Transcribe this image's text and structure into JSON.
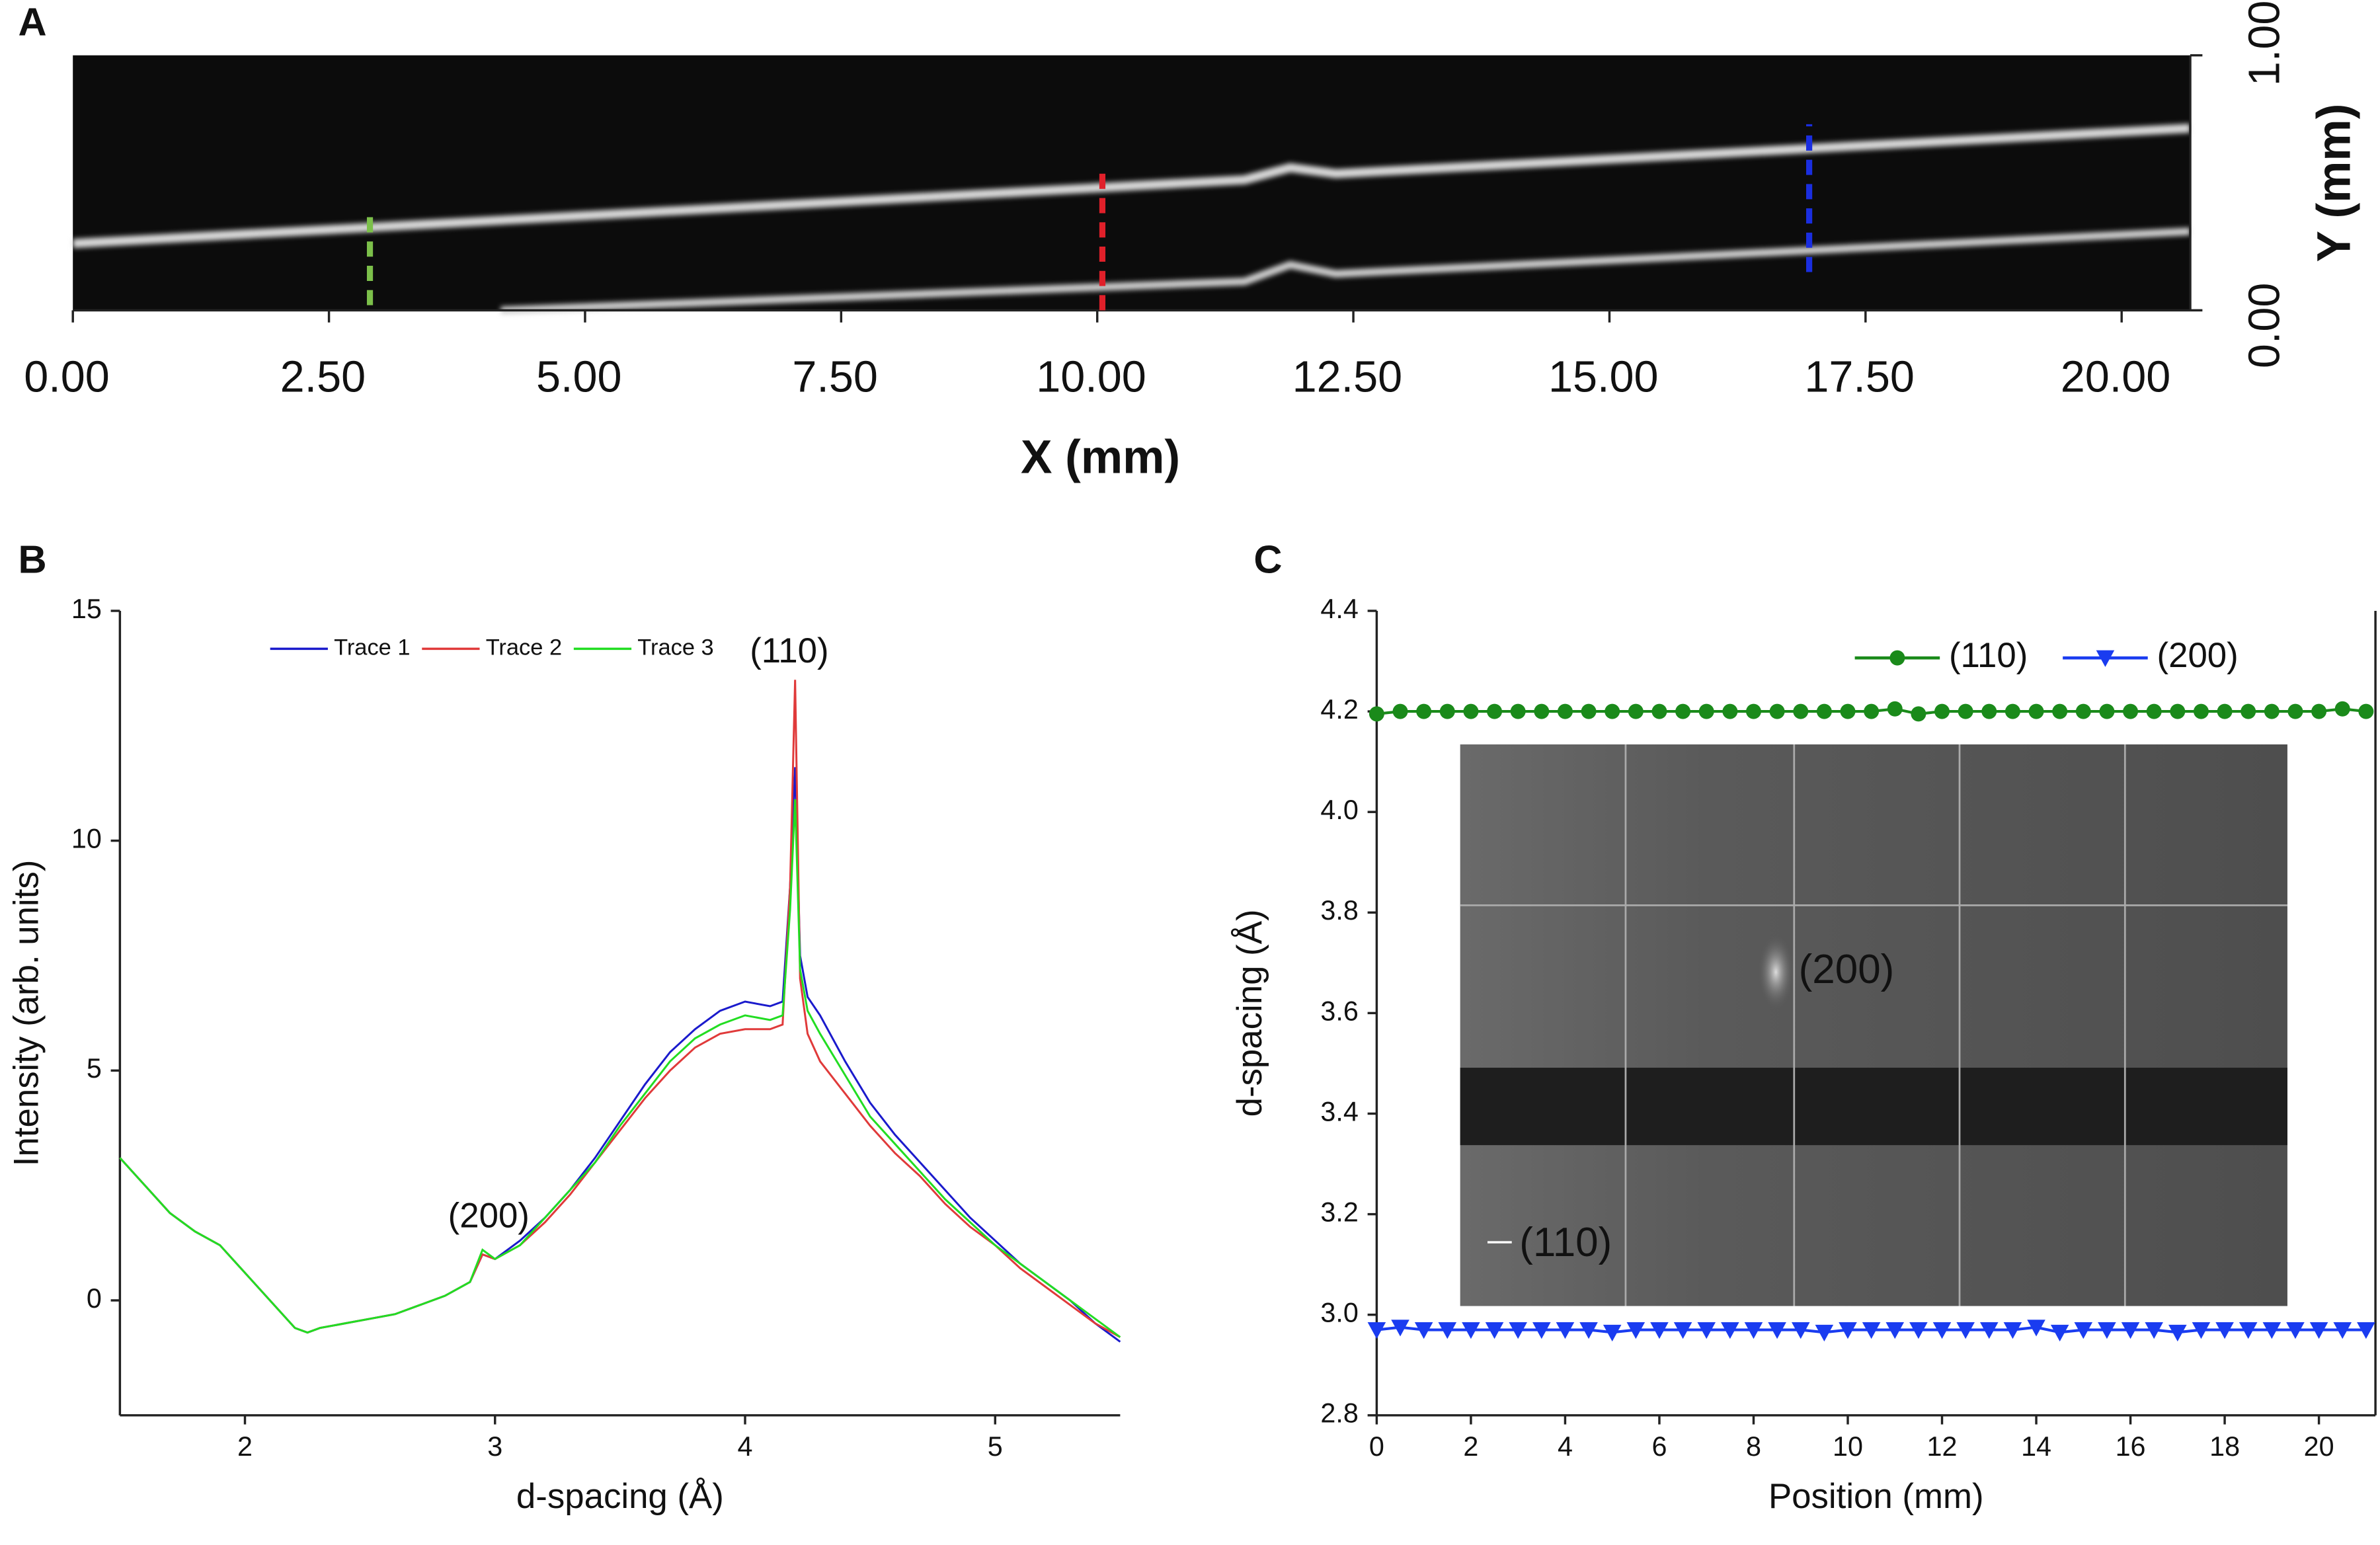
{
  "chart_data": [
    {
      "type": "image",
      "panel_label": "A",
      "x_label": "X (mm)",
      "y_label": "Y (mm)",
      "xlim": [
        0,
        20.67
      ],
      "ylim": [
        0,
        1
      ],
      "xticks": [
        {
          "value": 0,
          "label": "0.00"
        },
        {
          "value": 2.5,
          "label": "2.50"
        },
        {
          "value": 5,
          "label": "5.00"
        },
        {
          "value": 7.5,
          "label": "7.50"
        },
        {
          "value": 10,
          "label": "10.00"
        },
        {
          "value": 12.5,
          "label": "12.50"
        },
        {
          "value": 15,
          "label": "15.00"
        },
        {
          "value": 17.5,
          "label": "17.50"
        },
        {
          "value": 20,
          "label": "20.00"
        }
      ],
      "yticks": [
        {
          "value": 0,
          "label": "0.00"
        },
        {
          "value": 1,
          "label": "1.00"
        }
      ],
      "markers": [
        {
          "x": 2.9,
          "y": [
            0.02,
            0.38
          ],
          "color": "#7cc04a"
        },
        {
          "x": 10.05,
          "y": [
            0,
            0.57
          ],
          "color": "#e0202a"
        },
        {
          "x": 16.95,
          "y": [
            0.15,
            0.73
          ],
          "color": "#1a2ee0"
        }
      ]
    },
    {
      "type": "line",
      "panel_label": "B",
      "x_label": "d-spacing (Å)",
      "y_label": "Intensity (arb. units)",
      "xlim": [
        1.5,
        5.5
      ],
      "ylim": [
        -2.5,
        15
      ],
      "xticks": [
        2,
        3,
        4,
        5
      ],
      "yticks": [
        0,
        5,
        10,
        15
      ],
      "annotations": [
        "(110)",
        "(200)"
      ],
      "x": [
        1.5,
        1.6,
        1.7,
        1.8,
        1.9,
        2.0,
        2.1,
        2.2,
        2.25,
        2.3,
        2.4,
        2.5,
        2.6,
        2.7,
        2.8,
        2.9,
        2.95,
        3.0,
        3.1,
        3.2,
        3.3,
        3.4,
        3.5,
        3.6,
        3.7,
        3.8,
        3.9,
        4.0,
        4.1,
        4.15,
        4.18,
        4.2,
        4.22,
        4.25,
        4.3,
        4.4,
        4.5,
        4.6,
        4.7,
        4.8,
        4.9,
        5.0,
        5.1,
        5.2,
        5.3,
        5.4,
        5.5
      ],
      "series": [
        {
          "name": "Trace 1",
          "color": "#1a1acc",
          "values": [
            3.1,
            2.5,
            1.9,
            1.5,
            1.2,
            0.6,
            0.0,
            -0.6,
            -0.7,
            -0.6,
            -0.5,
            -0.4,
            -0.3,
            -0.1,
            0.1,
            0.4,
            1.0,
            0.9,
            1.3,
            1.8,
            2.4,
            3.1,
            3.9,
            4.7,
            5.4,
            5.9,
            6.3,
            6.5,
            6.4,
            6.5,
            9.0,
            11.6,
            7.5,
            6.6,
            6.2,
            5.2,
            4.3,
            3.6,
            3.0,
            2.4,
            1.8,
            1.3,
            0.8,
            0.4,
            0.0,
            -0.5,
            -0.9
          ]
        },
        {
          "name": "Trace 2",
          "color": "#e03a3a",
          "values": [
            3.1,
            2.5,
            1.9,
            1.5,
            1.2,
            0.6,
            0.0,
            -0.6,
            -0.7,
            -0.6,
            -0.5,
            -0.4,
            -0.3,
            -0.1,
            0.1,
            0.4,
            1.0,
            0.9,
            1.2,
            1.7,
            2.3,
            3.0,
            3.7,
            4.4,
            5.0,
            5.5,
            5.8,
            5.9,
            5.9,
            6.0,
            9.0,
            13.5,
            7.0,
            5.8,
            5.2,
            4.5,
            3.8,
            3.2,
            2.7,
            2.1,
            1.6,
            1.2,
            0.7,
            0.3,
            -0.1,
            -0.5,
            -0.8
          ]
        },
        {
          "name": "Trace 3",
          "color": "#22dd22",
          "values": [
            3.1,
            2.5,
            1.9,
            1.5,
            1.2,
            0.6,
            0.0,
            -0.6,
            -0.7,
            -0.6,
            -0.5,
            -0.4,
            -0.3,
            -0.1,
            0.1,
            0.4,
            1.1,
            0.9,
            1.2,
            1.8,
            2.4,
            3.0,
            3.8,
            4.5,
            5.2,
            5.7,
            6.0,
            6.2,
            6.1,
            6.2,
            8.5,
            10.9,
            7.2,
            6.3,
            5.8,
            4.9,
            4.0,
            3.4,
            2.8,
            2.2,
            1.7,
            1.2,
            0.8,
            0.4,
            0.0,
            -0.4,
            -0.8
          ]
        }
      ]
    },
    {
      "type": "line",
      "panel_label": "C",
      "x_label": "Position (mm)",
      "y_label": "d-spacing (Å)",
      "xlim": [
        0,
        21.2
      ],
      "ylim": [
        2.8,
        4.4
      ],
      "xticks": [
        0,
        2,
        4,
        6,
        8,
        10,
        12,
        14,
        16,
        18,
        20
      ],
      "yticks": [
        2.8,
        {
          "value": 3,
          "label": "3.0"
        },
        3.2,
        3.4,
        3.6,
        3.8,
        {
          "value": 4,
          "label": "4.0"
        },
        4.2,
        4.4
      ],
      "annotations": [
        "(200)",
        "(110)"
      ],
      "x": [
        0,
        0.5,
        1,
        1.5,
        2,
        2.5,
        3,
        3.5,
        4,
        4.5,
        5,
        5.5,
        6,
        6.5,
        7,
        7.5,
        8,
        8.5,
        9,
        9.5,
        10,
        10.5,
        11,
        11.5,
        12,
        12.5,
        13,
        13.5,
        14,
        14.5,
        15,
        15.5,
        16,
        16.5,
        17,
        17.5,
        18,
        18.5,
        19,
        19.5,
        20,
        20.5,
        21
      ],
      "series": [
        {
          "name": "(110)",
          "color": "#1a8a1a",
          "marker": "circle",
          "values": [
            4.195,
            4.2,
            4.2,
            4.2,
            4.2,
            4.2,
            4.2,
            4.2,
            4.2,
            4.2,
            4.2,
            4.2,
            4.2,
            4.2,
            4.2,
            4.2,
            4.2,
            4.2,
            4.2,
            4.2,
            4.2,
            4.2,
            4.205,
            4.195,
            4.2,
            4.2,
            4.2,
            4.2,
            4.2,
            4.2,
            4.2,
            4.2,
            4.2,
            4.2,
            4.2,
            4.2,
            4.2,
            4.2,
            4.2,
            4.2,
            4.2,
            4.205,
            4.2
          ]
        },
        {
          "name": "(200)",
          "color": "#1a3cf0",
          "marker": "triangle-down",
          "values": [
            2.97,
            2.975,
            2.97,
            2.97,
            2.97,
            2.97,
            2.97,
            2.97,
            2.97,
            2.97,
            2.965,
            2.97,
            2.97,
            2.97,
            2.97,
            2.97,
            2.97,
            2.97,
            2.97,
            2.965,
            2.97,
            2.97,
            2.97,
            2.97,
            2.97,
            2.97,
            2.97,
            2.97,
            2.975,
            2.965,
            2.97,
            2.97,
            2.97,
            2.97,
            2.965,
            2.97,
            2.97,
            2.97,
            2.97,
            2.97,
            2.97,
            2.97,
            2.97
          ]
        }
      ]
    }
  ]
}
